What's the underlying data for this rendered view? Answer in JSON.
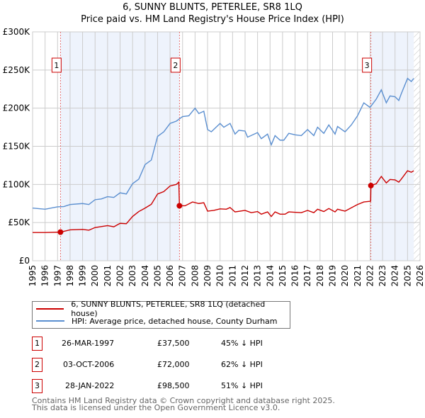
{
  "title": "6, SUNNY BLUNTS, PETERLEE, SR8 1LQ",
  "subtitle": "Price paid vs. HM Land Registry's House Price Index (HPI)",
  "chart_data": {
    "type": "line",
    "xlim": [
      1995,
      2026
    ],
    "ylim": [
      0,
      300000
    ],
    "yticks": [
      {
        "v": 0,
        "label": "£0"
      },
      {
        "v": 50000,
        "label": "£50K"
      },
      {
        "v": 100000,
        "label": "£100K"
      },
      {
        "v": 150000,
        "label": "£150K"
      },
      {
        "v": 200000,
        "label": "£200K"
      },
      {
        "v": 250000,
        "label": "£250K"
      },
      {
        "v": 300000,
        "label": "£300K"
      }
    ],
    "xticks": [
      "1995",
      "1996",
      "1997",
      "1998",
      "1999",
      "2000",
      "2001",
      "2002",
      "2003",
      "2004",
      "2005",
      "2006",
      "2007",
      "2008",
      "2009",
      "2010",
      "2011",
      "2012",
      "2013",
      "2014",
      "2015",
      "2016",
      "2017",
      "2018",
      "2019",
      "2020",
      "2021",
      "2022",
      "2023",
      "2024",
      "2025",
      "2026"
    ],
    "shaded_ranges": [
      [
        1997.23,
        2006.75
      ],
      [
        2022.07,
        2025.5
      ]
    ],
    "hatched_from": 2025.5,
    "series": [
      {
        "name": "6, SUNNY BLUNTS, PETERLEE, SR8 1LQ (detached house)",
        "color": "#cc0000",
        "points": [
          [
            1995,
            37000
          ],
          [
            1996,
            37000
          ],
          [
            1997.23,
            37500
          ],
          [
            1998,
            40500
          ],
          [
            1999,
            41000
          ],
          [
            1999.5,
            40000
          ],
          [
            2000,
            43500
          ],
          [
            2001,
            46000
          ],
          [
            2001.5,
            44500
          ],
          [
            2002,
            49000
          ],
          [
            2002.5,
            48500
          ],
          [
            2003,
            58000
          ],
          [
            2003.5,
            64500
          ],
          [
            2004,
            69000
          ],
          [
            2004.5,
            74000
          ],
          [
            2005,
            87500
          ],
          [
            2005.5,
            90600
          ],
          [
            2006,
            98000
          ],
          [
            2006.5,
            100000
          ],
          [
            2006.7,
            103000
          ],
          [
            2006.75,
            72000
          ],
          [
            2007.2,
            72000
          ],
          [
            2007.8,
            77000
          ],
          [
            2008.3,
            75000
          ],
          [
            2008.7,
            76000
          ],
          [
            2009,
            65000
          ],
          [
            2009.5,
            66000
          ],
          [
            2010,
            68000
          ],
          [
            2010.5,
            67500
          ],
          [
            2010.8,
            69700
          ],
          [
            2011.2,
            64000
          ],
          [
            2012,
            66000
          ],
          [
            2012.5,
            63000
          ],
          [
            2013,
            64500
          ],
          [
            2013.3,
            61000
          ],
          [
            2013.8,
            64000
          ],
          [
            2014.1,
            58000
          ],
          [
            2014.4,
            64000
          ],
          [
            2014.8,
            61000
          ],
          [
            2015.2,
            61000
          ],
          [
            2015.5,
            64000
          ],
          [
            2016.5,
            63000
          ],
          [
            2017,
            66000
          ],
          [
            2017.5,
            63000
          ],
          [
            2017.8,
            67500
          ],
          [
            2018.3,
            64500
          ],
          [
            2018.7,
            68500
          ],
          [
            2019.2,
            64000
          ],
          [
            2019.4,
            67500
          ],
          [
            2020,
            65000
          ],
          [
            2021,
            73700
          ],
          [
            2021.5,
            77000
          ],
          [
            2022.05,
            78000
          ],
          [
            2022.07,
            98500
          ],
          [
            2022.5,
            101000
          ],
          [
            2022.9,
            110500
          ],
          [
            2023.3,
            102000
          ],
          [
            2023.6,
            106500
          ],
          [
            2024,
            106000
          ],
          [
            2024.3,
            103000
          ],
          [
            2024.5,
            107000
          ],
          [
            2025,
            118000
          ],
          [
            2025.3,
            116000
          ],
          [
            2025.5,
            118000
          ]
        ]
      },
      {
        "name": "HPI: Average price, detached house, County Durham",
        "color": "#5b8fd0",
        "points": [
          [
            1995,
            69000
          ],
          [
            1996,
            67500
          ],
          [
            1997,
            70600
          ],
          [
            1997.5,
            71000
          ],
          [
            1998,
            73700
          ],
          [
            1999,
            75000
          ],
          [
            1999.5,
            73700
          ],
          [
            2000,
            80000
          ],
          [
            2000.5,
            81000
          ],
          [
            2001,
            84000
          ],
          [
            2001.5,
            83000
          ],
          [
            2002,
            89000
          ],
          [
            2002.5,
            87500
          ],
          [
            2003,
            101000
          ],
          [
            2003.5,
            107000
          ],
          [
            2004,
            126000
          ],
          [
            2004.5,
            132000
          ],
          [
            2005,
            163000
          ],
          [
            2005.5,
            169000
          ],
          [
            2006,
            180000
          ],
          [
            2006.5,
            183000
          ],
          [
            2007,
            189000
          ],
          [
            2007.5,
            190000
          ],
          [
            2008,
            200000
          ],
          [
            2008.3,
            193000
          ],
          [
            2008.7,
            196000
          ],
          [
            2009,
            172000
          ],
          [
            2009.3,
            169000
          ],
          [
            2010,
            180000
          ],
          [
            2010.3,
            175000
          ],
          [
            2010.8,
            180000
          ],
          [
            2011.2,
            166000
          ],
          [
            2011.5,
            171000
          ],
          [
            2012,
            170000
          ],
          [
            2012.2,
            162000
          ],
          [
            2013,
            168000
          ],
          [
            2013.3,
            160000
          ],
          [
            2013.8,
            166000
          ],
          [
            2014.1,
            152000
          ],
          [
            2014.4,
            164000
          ],
          [
            2014.8,
            158000
          ],
          [
            2015.1,
            158000
          ],
          [
            2015.5,
            167000
          ],
          [
            2016,
            165000
          ],
          [
            2016.5,
            164000
          ],
          [
            2017,
            172000
          ],
          [
            2017.5,
            164000
          ],
          [
            2017.8,
            175000
          ],
          [
            2018.3,
            167000
          ],
          [
            2018.7,
            178000
          ],
          [
            2019.2,
            166000
          ],
          [
            2019.4,
            176000
          ],
          [
            2020,
            169000
          ],
          [
            2020.5,
            178000
          ],
          [
            2021,
            190000
          ],
          [
            2021.5,
            207000
          ],
          [
            2022,
            201000
          ],
          [
            2022.5,
            212000
          ],
          [
            2022.9,
            224000
          ],
          [
            2023.3,
            207000
          ],
          [
            2023.6,
            216000
          ],
          [
            2024,
            215000
          ],
          [
            2024.3,
            210000
          ],
          [
            2024.5,
            219000
          ],
          [
            2025,
            239000
          ],
          [
            2025.3,
            235000
          ],
          [
            2025.5,
            239000
          ]
        ]
      }
    ],
    "sales": [
      {
        "label": "1",
        "x": 1997.23,
        "y": 37500
      },
      {
        "label": "2",
        "x": 2006.75,
        "y": 72000
      },
      {
        "label": "3",
        "x": 2022.07,
        "y": 98500
      }
    ]
  },
  "legend": [
    "6, SUNNY BLUNTS, PETERLEE, SR8 1LQ (detached house)",
    "HPI: Average price, detached house, County Durham"
  ],
  "transactions": [
    {
      "num": "1",
      "date": "26-MAR-1997",
      "price": "£37,500",
      "hpi": "45% ↓ HPI"
    },
    {
      "num": "2",
      "date": "03-OCT-2006",
      "price": "£72,000",
      "hpi": "62% ↓ HPI"
    },
    {
      "num": "3",
      "date": "28-JAN-2022",
      "price": "£98,500",
      "hpi": "51% ↓ HPI"
    }
  ],
  "footer": [
    "Contains HM Land Registry data © Crown copyright and database right 2025.",
    "This data is licensed under the Open Government Licence v3.0."
  ]
}
